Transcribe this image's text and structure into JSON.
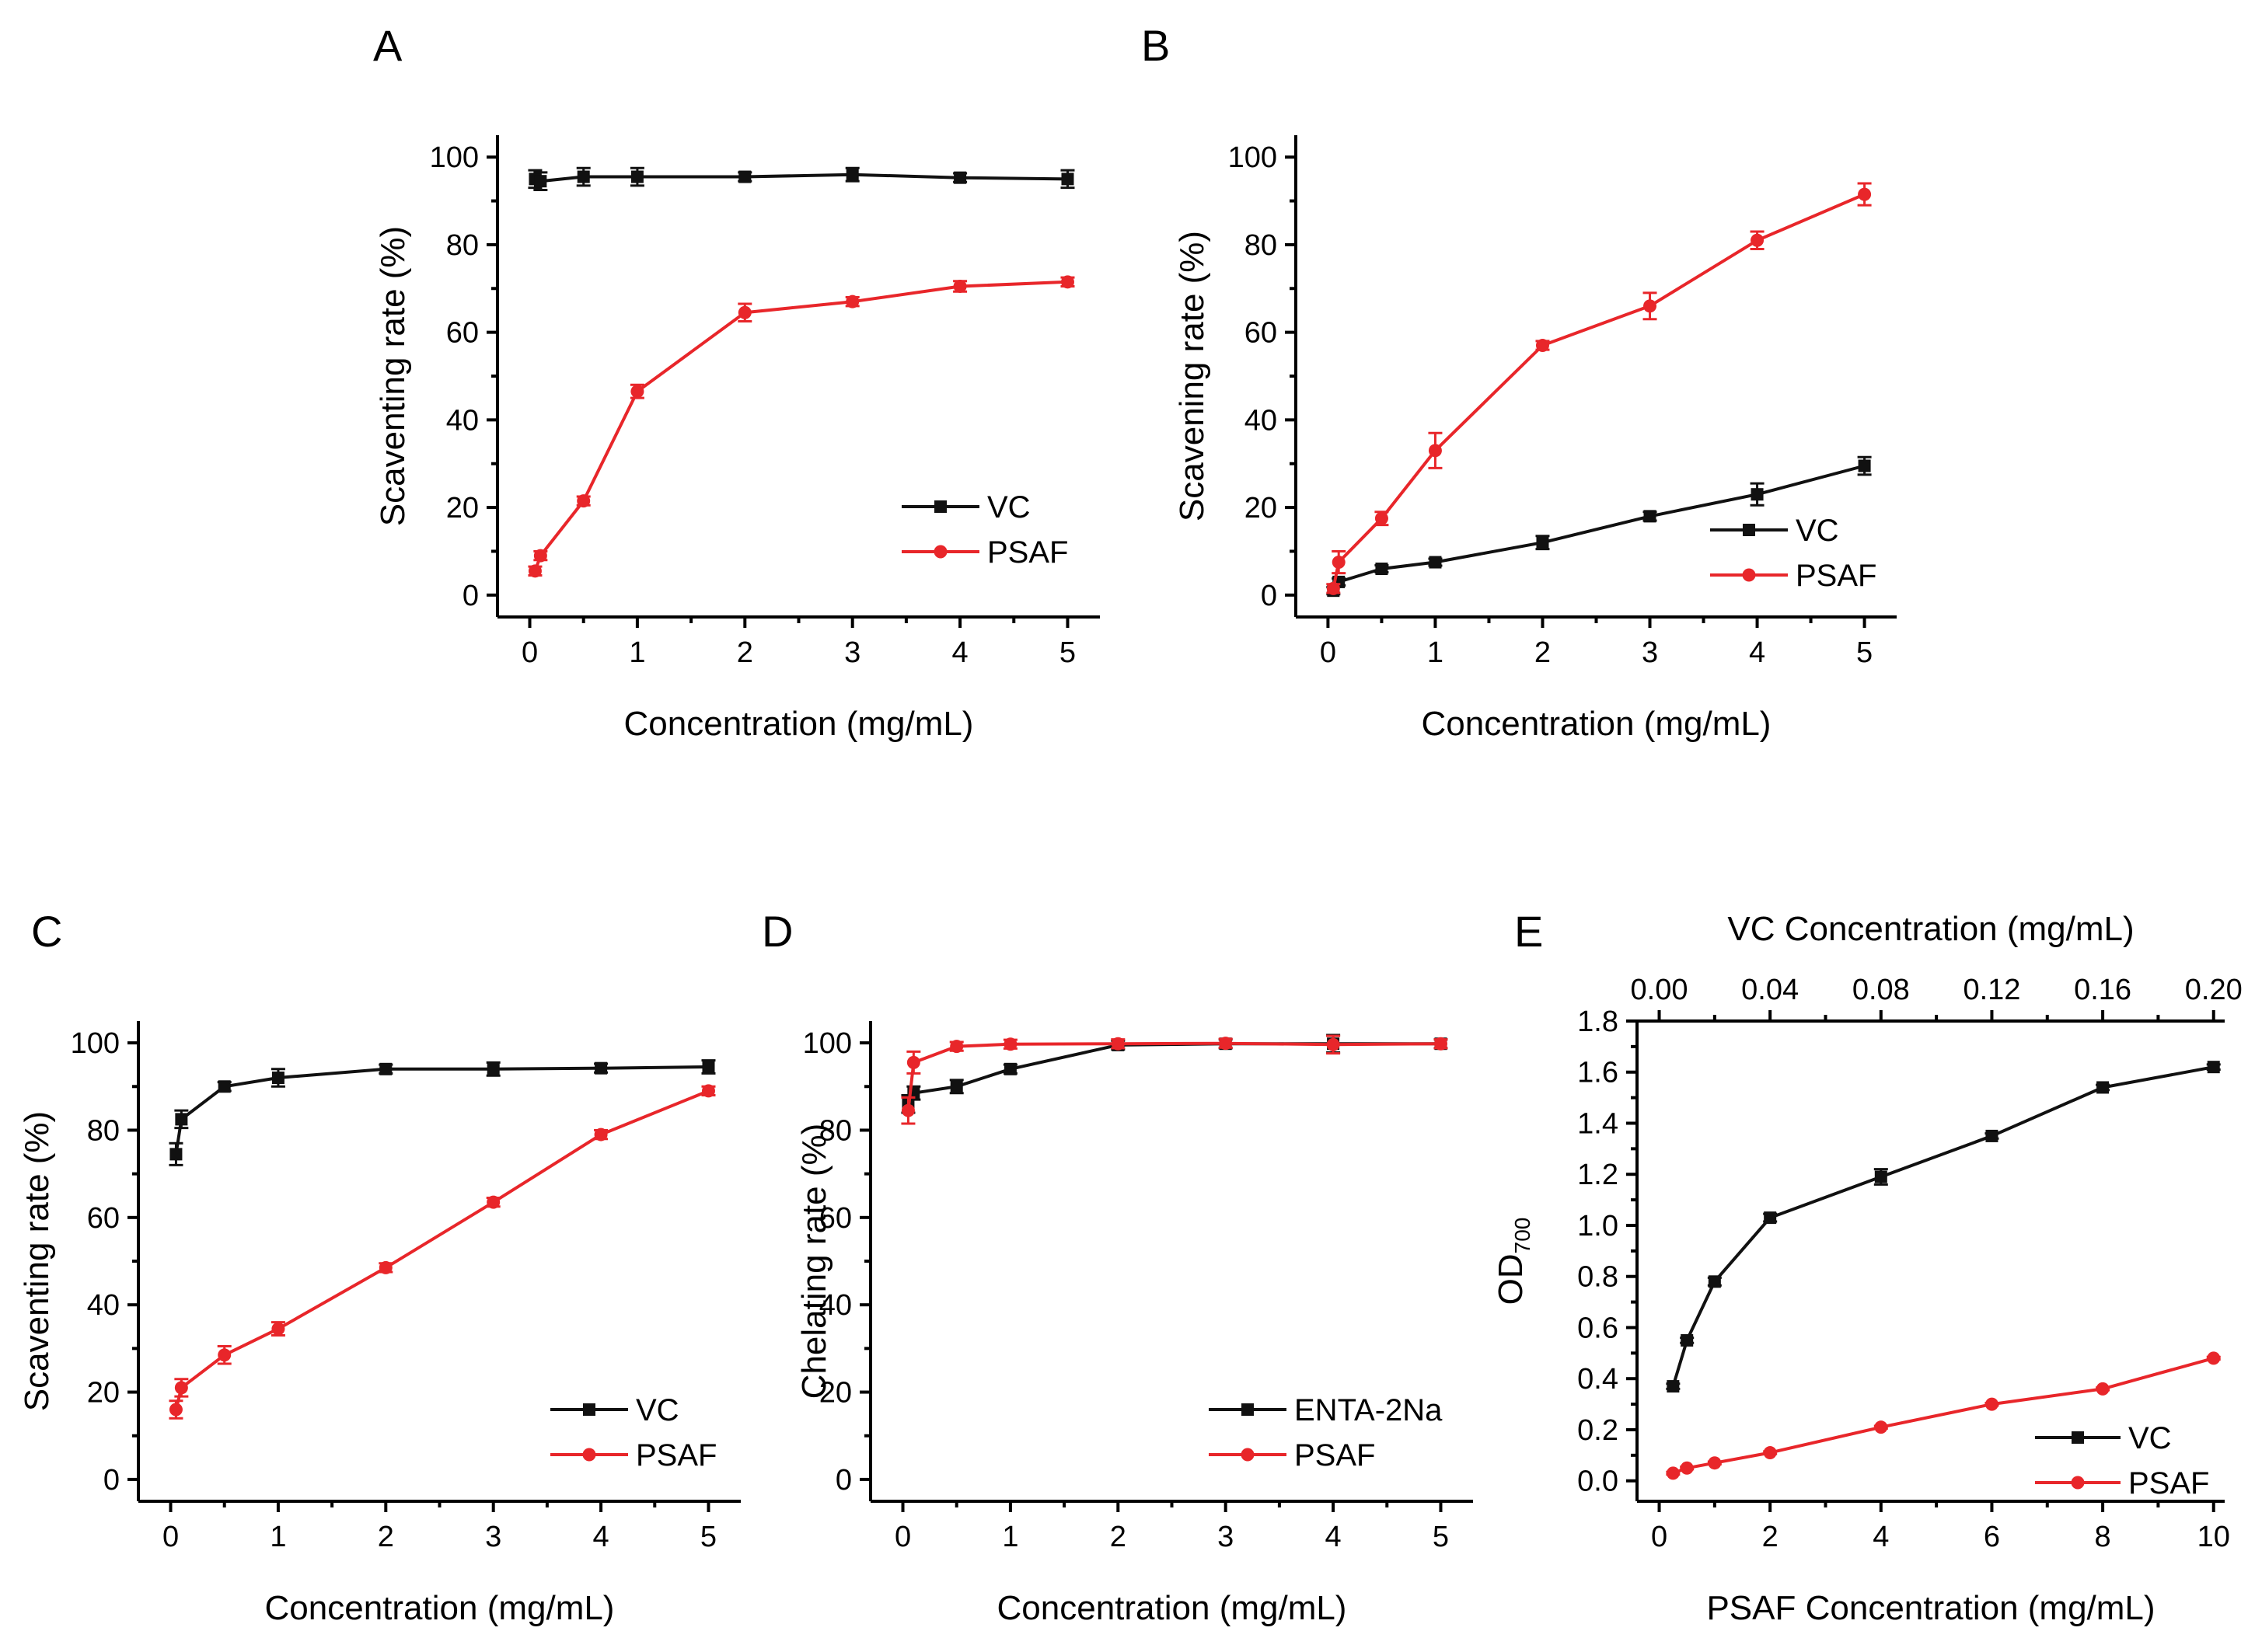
{
  "colors": {
    "vc": "#111111",
    "psaf": "#e8262a",
    "axis": "#000000"
  },
  "chart_data": [
    {
      "type": "line",
      "panel": "A",
      "title": "",
      "xlabel": "Concentration (mg/mL)",
      "ylabel": "Scaventing rate (%)",
      "xlim": [
        -0.3,
        5.3
      ],
      "ylim": [
        -5,
        105
      ],
      "xticks": [
        0,
        1,
        2,
        3,
        4,
        5
      ],
      "xtick_labels": [
        "0",
        "1",
        "2",
        "3",
        "4",
        "5"
      ],
      "yticks": [
        0,
        20,
        40,
        60,
        80,
        100
      ],
      "ytick_labels": [
        "0",
        "20",
        "40",
        "60",
        "80",
        "100"
      ],
      "legend": "bottom-right",
      "series": [
        {
          "name": "VC",
          "marker": "square",
          "color": "#111111",
          "x": [
            0.05,
            0.1,
            0.5,
            1,
            2,
            3,
            4,
            5
          ],
          "y": [
            95,
            94.5,
            95.5,
            95.5,
            95.5,
            96,
            95.3,
            95
          ],
          "err": [
            2,
            2,
            2,
            2,
            1,
            1.5,
            1,
            2
          ]
        },
        {
          "name": "PSAF",
          "marker": "circle",
          "color": "#e8262a",
          "x": [
            0.05,
            0.1,
            0.5,
            1,
            2,
            3,
            4,
            5
          ],
          "y": [
            5.5,
            9,
            21.5,
            46.5,
            64.5,
            67,
            70.5,
            71.5
          ],
          "err": [
            1,
            1,
            1,
            1.5,
            2,
            1,
            1.2,
            1
          ]
        }
      ]
    },
    {
      "type": "line",
      "panel": "B",
      "title": "",
      "xlabel": "Concentration (mg/mL)",
      "ylabel": "Scavening rate (%)",
      "xlim": [
        -0.3,
        5.3
      ],
      "ylim": [
        -5,
        105
      ],
      "xticks": [
        0,
        1,
        2,
        3,
        4,
        5
      ],
      "xtick_labels": [
        "0",
        "1",
        "2",
        "3",
        "4",
        "5"
      ],
      "yticks": [
        0,
        20,
        40,
        60,
        80,
        100
      ],
      "ytick_labels": [
        "0",
        "20",
        "40",
        "60",
        "80",
        "100"
      ],
      "legend": "bottom-right",
      "series": [
        {
          "name": "VC",
          "marker": "square",
          "color": "#111111",
          "x": [
            0.05,
            0.1,
            0.5,
            1,
            2,
            3,
            4,
            5
          ],
          "y": [
            1,
            3,
            6,
            7.5,
            12,
            18,
            23,
            29.5
          ],
          "err": [
            0.8,
            0.8,
            0.8,
            0.8,
            1.5,
            1,
            2.5,
            2
          ]
        },
        {
          "name": "PSAF",
          "marker": "circle",
          "color": "#e8262a",
          "x": [
            0.05,
            0.1,
            0.5,
            1,
            2,
            3,
            4,
            5
          ],
          "y": [
            1.5,
            7.5,
            17.5,
            33,
            57,
            66,
            81,
            91.5
          ],
          "err": [
            1,
            2.5,
            1.5,
            4,
            1,
            3,
            2,
            2.5
          ]
        }
      ]
    },
    {
      "type": "line",
      "panel": "C",
      "title": "",
      "xlabel": "Concentration (mg/mL)",
      "ylabel": "Scaventing rate (%)",
      "xlim": [
        -0.3,
        5.3
      ],
      "ylim": [
        -5,
        105
      ],
      "xticks": [
        0,
        1,
        2,
        3,
        4,
        5
      ],
      "xtick_labels": [
        "0",
        "1",
        "2",
        "3",
        "4",
        "5"
      ],
      "yticks": [
        0,
        20,
        40,
        60,
        80,
        100
      ],
      "ytick_labels": [
        "0",
        "20",
        "40",
        "60",
        "80",
        "100"
      ],
      "legend": "bottom-right",
      "series": [
        {
          "name": "VC",
          "marker": "square",
          "color": "#111111",
          "x": [
            0.05,
            0.1,
            0.5,
            1,
            2,
            3,
            4,
            5
          ],
          "y": [
            74.5,
            82.5,
            90,
            92,
            94,
            94,
            94.2,
            94.5
          ],
          "err": [
            2.5,
            2,
            1,
            2,
            1,
            1.5,
            1,
            1.5
          ]
        },
        {
          "name": "PSAF",
          "marker": "circle",
          "color": "#e8262a",
          "x": [
            0.05,
            0.1,
            0.5,
            1,
            2,
            3,
            4,
            5
          ],
          "y": [
            16,
            21,
            28.5,
            34.5,
            48.5,
            63.5,
            79,
            89
          ],
          "err": [
            2,
            2,
            2,
            1.5,
            1,
            1,
            1,
            1
          ]
        }
      ]
    },
    {
      "type": "line",
      "panel": "D",
      "title": "",
      "xlabel": "Concentration (mg/mL)",
      "ylabel": "Chelating rate (%)",
      "xlim": [
        -0.3,
        5.3
      ],
      "ylim": [
        -5,
        105
      ],
      "xticks": [
        0,
        1,
        2,
        3,
        4,
        5
      ],
      "xtick_labels": [
        "0",
        "1",
        "2",
        "3",
        "4",
        "5"
      ],
      "yticks": [
        0,
        20,
        40,
        60,
        80,
        100
      ],
      "ytick_labels": [
        "0",
        "20",
        "40",
        "60",
        "80",
        "100"
      ],
      "legend": "bottom-right",
      "series": [
        {
          "name": "ENTA-2Na",
          "marker": "square",
          "color": "#111111",
          "x": [
            0.05,
            0.1,
            0.5,
            1,
            2,
            3,
            4,
            5
          ],
          "y": [
            86,
            88.5,
            90,
            94,
            99.5,
            99.8,
            99.8,
            99.8
          ],
          "err": [
            2,
            1.5,
            1.5,
            1,
            1,
            1,
            2,
            1
          ]
        },
        {
          "name": "PSAF",
          "marker": "circle",
          "color": "#e8262a",
          "x": [
            0.05,
            0.1,
            0.5,
            1,
            2,
            3,
            4,
            5
          ],
          "y": [
            84.5,
            95.5,
            99.2,
            99.7,
            99.8,
            99.9,
            99.6,
            99.8
          ],
          "err": [
            3,
            2.5,
            1,
            1,
            1,
            1,
            2,
            1
          ]
        }
      ]
    },
    {
      "type": "line",
      "panel": "E",
      "title": "",
      "xlabel": "PSAF Concentration (mg/mL)",
      "x2label": "VC Concentration (mg/mL)",
      "ylabel": "OD",
      "ylabel_subscript": "700",
      "xlim": [
        -0.4,
        10.2
      ],
      "ylim": [
        -0.08,
        1.8
      ],
      "xticks": [
        0,
        2,
        4,
        6,
        8,
        10
      ],
      "xtick_labels": [
        "0",
        "2",
        "4",
        "6",
        "8",
        "10"
      ],
      "x2lim": [
        -0.008,
        0.204
      ],
      "x2ticks": [
        0,
        0.04,
        0.08,
        0.12,
        0.16,
        0.2
      ],
      "x2tick_labels": [
        "0.00",
        "0.04",
        "0.08",
        "0.12",
        "0.16",
        "0.20"
      ],
      "yticks": [
        0,
        0.2,
        0.4,
        0.6,
        0.8,
        1.0,
        1.2,
        1.4,
        1.6,
        1.8
      ],
      "ytick_labels": [
        "0.0",
        "0.2",
        "0.4",
        "0.6",
        "0.8",
        "1.0",
        "1.2",
        "1.4",
        "1.6",
        "1.8"
      ],
      "legend": "bottom-right",
      "series": [
        {
          "name": "VC",
          "marker": "square",
          "color": "#111111",
          "axis": "top",
          "x": [
            0.005,
            0.01,
            0.02,
            0.04,
            0.08,
            0.12,
            0.16,
            0.2
          ],
          "y": [
            0.37,
            0.55,
            0.78,
            1.03,
            1.19,
            1.35,
            1.54,
            1.62
          ],
          "err": [
            0.01,
            0.01,
            0.015,
            0.015,
            0.03,
            0.01,
            0.01,
            0.01
          ]
        },
        {
          "name": "PSAF",
          "marker": "circle",
          "color": "#e8262a",
          "axis": "bottom",
          "x": [
            0.25,
            0.5,
            1,
            2,
            4,
            6,
            8,
            10
          ],
          "y": [
            0.03,
            0.05,
            0.07,
            0.11,
            0.21,
            0.3,
            0.36,
            0.48
          ],
          "err": [
            0.005,
            0.005,
            0.005,
            0.005,
            0.005,
            0.005,
            0.005,
            0.005
          ]
        }
      ]
    }
  ]
}
